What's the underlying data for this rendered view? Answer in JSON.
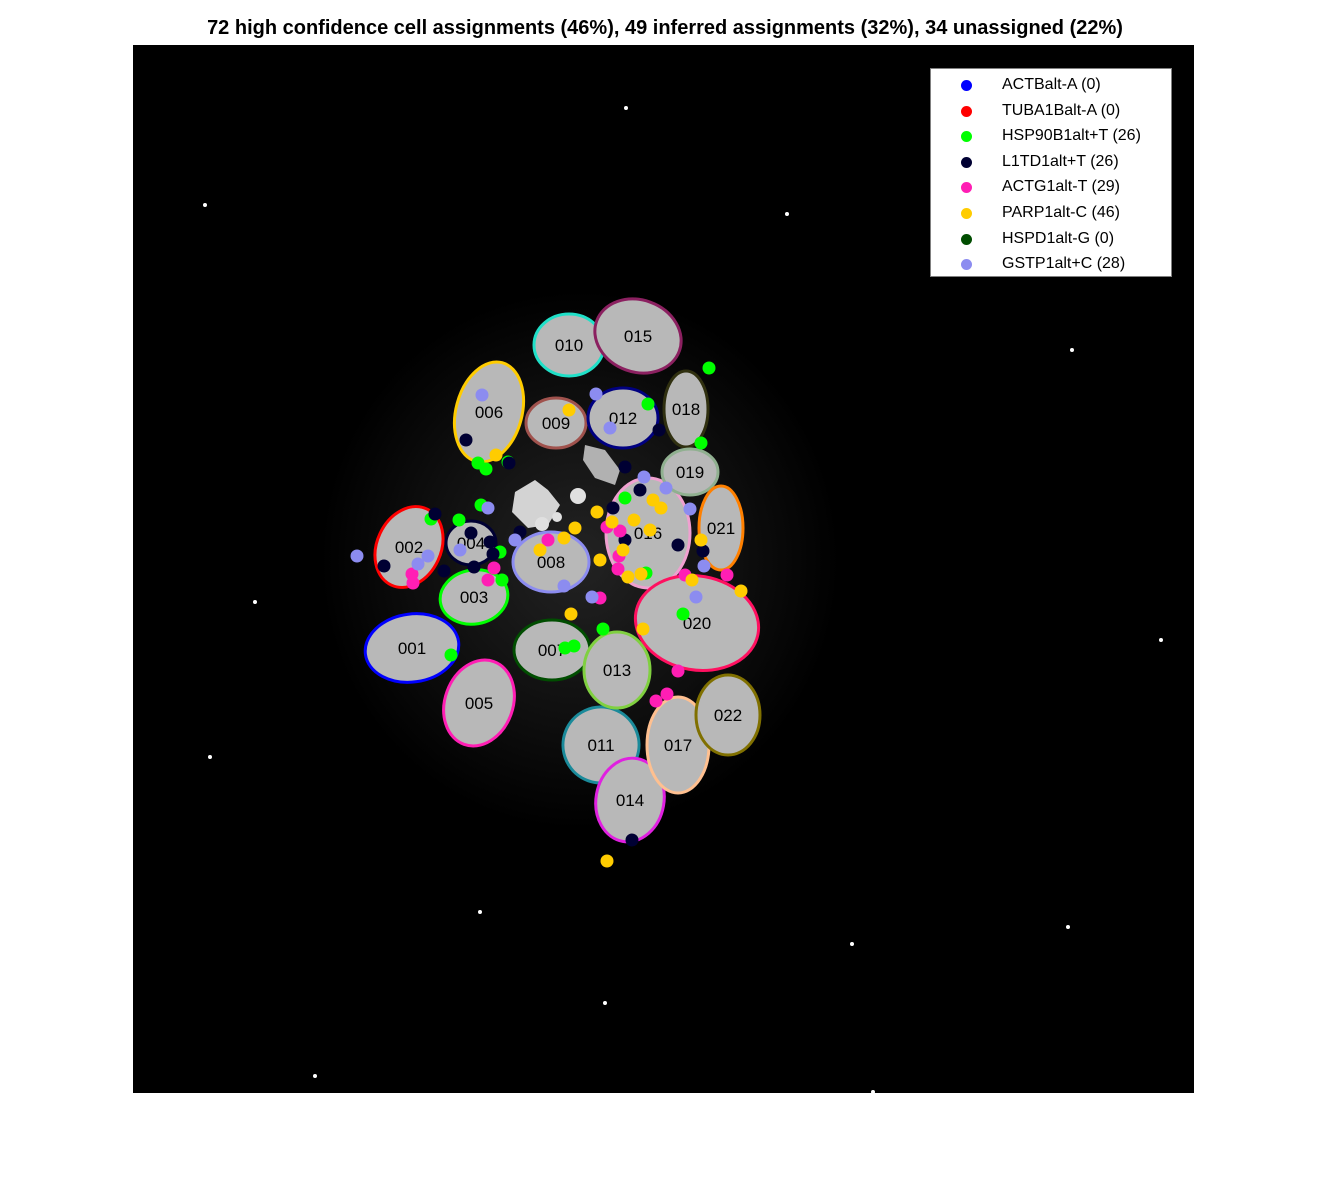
{
  "title": "72 high confidence cell assignments (46%), 49 inferred assignments (32%), 34 unassigned (22%)",
  "legend": {
    "placement": "top-right",
    "items": [
      {
        "label": "ACTBalt-A (0)",
        "color": "#0000ff"
      },
      {
        "label": "TUBA1Balt-A (0)",
        "color": "#ff0000"
      },
      {
        "label": "HSP90B1alt+T (26)",
        "color": "#00ff00"
      },
      {
        "label": "L1TD1alt+T (26)",
        "color": "#000033"
      },
      {
        "label": "ACTG1alt-T (29)",
        "color": "#ff1eb4"
      },
      {
        "label": "PARP1alt-C (46)",
        "color": "#ffcc00"
      },
      {
        "label": "HSPD1alt-G (0)",
        "color": "#004d00"
      },
      {
        "label": "GSTP1alt+C (28)",
        "color": "#8c8cf0"
      }
    ]
  },
  "cells": [
    {
      "id": "001",
      "color": "#0000ff"
    },
    {
      "id": "002",
      "color": "#ff0000"
    },
    {
      "id": "003",
      "color": "#00ff00"
    },
    {
      "id": "004",
      "color": "#000033"
    },
    {
      "id": "005",
      "color": "#ff1eb4"
    },
    {
      "id": "006",
      "color": "#ffcc00"
    },
    {
      "id": "007",
      "color": "#004d00"
    },
    {
      "id": "008",
      "color": "#8c8cf0"
    },
    {
      "id": "009",
      "color": "#a0524d"
    },
    {
      "id": "010",
      "color": "#20e0c8"
    },
    {
      "id": "011",
      "color": "#1a8a9a"
    },
    {
      "id": "012",
      "color": "#000080"
    },
    {
      "id": "013",
      "color": "#80d040"
    },
    {
      "id": "014",
      "color": "#e020e0"
    },
    {
      "id": "015",
      "color": "#8b2060"
    },
    {
      "id": "016",
      "color": "#f0a0d0"
    },
    {
      "id": "017",
      "color": "#ffc090"
    },
    {
      "id": "018",
      "color": "#303010"
    },
    {
      "id": "019",
      "color": "#90b090"
    },
    {
      "id": "020",
      "color": "#ff1060"
    },
    {
      "id": "021",
      "color": "#ff8000"
    },
    {
      "id": "022",
      "color": "#807000"
    }
  ]
}
